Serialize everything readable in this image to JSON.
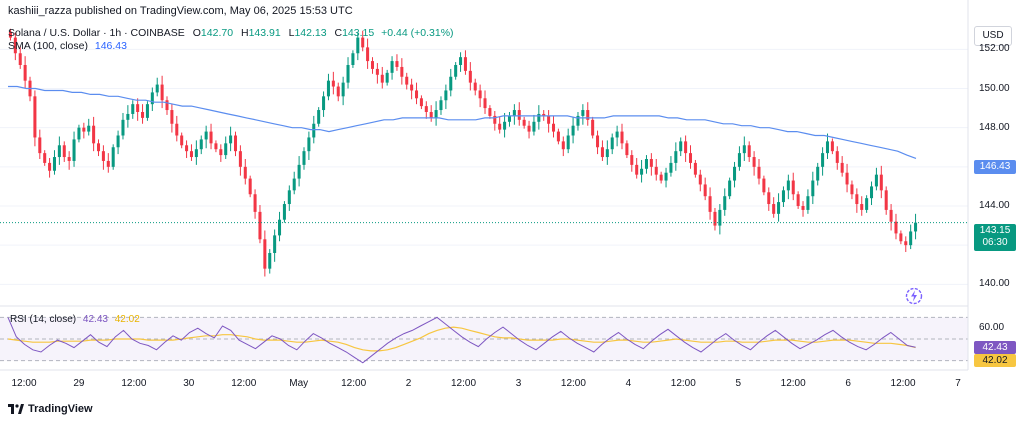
{
  "header": {
    "text": "kashiii_razza published on TradingView.com, May 06, 2025 15:53 UTC"
  },
  "legend": {
    "symbol": "Solana / U.S. Dollar · 1h · COINBASE",
    "open_label": "O",
    "open": "142.70",
    "high_label": "H",
    "high": "143.91",
    "low_label": "L",
    "low": "142.13",
    "close_label": "C",
    "close": "143.15",
    "change": "+0.44 (+0.31%)",
    "sma_label": "SMA (100, close)",
    "sma_value": "146.43",
    "rsi_label": "RSI (14, close)",
    "rsi_value": "42.43",
    "rsi_ma_value": "42.02"
  },
  "currency": "USD",
  "badges": {
    "sma": "146.43",
    "price": "143.15",
    "countdown": "06:30",
    "rsi": "42.43",
    "rsi_ma": "42.02"
  },
  "brand": "TradingView",
  "colors": {
    "up": "#089981",
    "down": "#f23645",
    "sma": "#5b8def",
    "rsi": "#7e57c2",
    "rsi_ma": "#f7c641"
  },
  "chart_data": [
    {
      "type": "candlestick",
      "title": "Solana / U.S. Dollar · 1h · COINBASE",
      "ylim": [
        139.2,
        153.6
      ],
      "y_ticks": [
        "152.00",
        "150.00",
        "148.00",
        "146.00",
        "144.00",
        "142.00",
        "140.00"
      ],
      "x_tick_labels": [
        "12:00",
        "29",
        "12:00",
        "30",
        "12:00",
        "May",
        "12:00",
        "2",
        "12:00",
        "3",
        "12:00",
        "4",
        "12:00",
        "5",
        "12:00",
        "6",
        "12:00",
        "7"
      ],
      "closes": [
        152.6,
        151.8,
        151.2,
        150.4,
        149.6,
        147.5,
        146.7,
        146.2,
        145.8,
        146.5,
        147.1,
        146.5,
        146.3,
        147.4,
        148.0,
        147.8,
        148.1,
        147.2,
        146.8,
        146.3,
        146.0,
        147.0,
        147.6,
        148.4,
        148.7,
        149.2,
        148.8,
        148.5,
        149.2,
        149.8,
        150.2,
        149.4,
        148.9,
        148.2,
        147.6,
        147.1,
        146.8,
        146.5,
        146.9,
        147.4,
        147.8,
        147.2,
        146.9,
        146.6,
        147.2,
        147.6,
        146.8,
        146.0,
        145.4,
        144.6,
        143.7,
        142.3,
        140.8,
        141.6,
        142.5,
        143.3,
        144.1,
        144.8,
        145.4,
        146.1,
        146.8,
        147.5,
        148.2,
        148.9,
        149.6,
        150.4,
        150.1,
        149.6,
        150.3,
        151.2,
        151.8,
        152.6,
        152.1,
        151.4,
        151.0,
        150.7,
        150.3,
        150.8,
        151.4,
        151.1,
        150.6,
        150.2,
        149.9,
        149.5,
        149.1,
        148.8,
        148.5,
        148.9,
        149.4,
        149.9,
        150.6,
        151.2,
        151.6,
        150.9,
        150.3,
        149.9,
        149.5,
        149.0,
        148.6,
        148.2,
        147.9,
        148.3,
        148.6,
        148.9,
        148.4,
        148.1,
        147.8,
        148.3,
        148.7,
        148.6,
        148.2,
        147.8,
        147.3,
        146.9,
        147.6,
        148.1,
        148.6,
        148.9,
        148.4,
        147.6,
        147.0,
        146.5,
        146.9,
        147.5,
        147.8,
        147.2,
        146.6,
        146.1,
        145.6,
        145.9,
        146.4,
        146.0,
        145.6,
        145.3,
        145.7,
        146.2,
        146.8,
        147.3,
        146.7,
        146.2,
        145.6,
        145.1,
        144.5,
        143.7,
        143.0,
        143.8,
        144.5,
        145.3,
        146.0,
        146.7,
        147.1,
        146.5,
        146.0,
        145.4,
        144.7,
        144.1,
        143.6,
        144.2,
        144.8,
        145.3,
        144.6,
        144.0,
        143.8,
        144.5,
        145.3,
        146.0,
        146.7,
        147.3,
        146.8,
        146.2,
        145.7,
        145.1,
        144.6,
        144.1,
        143.8,
        144.4,
        145.0,
        145.6,
        144.8,
        143.8,
        143.2,
        142.6,
        142.2,
        142.0,
        142.7,
        143.15
      ],
      "sma_100": [
        150.1,
        150.1,
        150.0,
        150.0,
        149.9,
        149.9,
        149.9,
        149.8,
        149.8,
        149.7,
        149.7,
        149.6,
        149.6,
        149.5,
        149.4,
        149.4,
        149.3,
        149.3,
        149.2,
        149.1,
        149.1,
        149.0,
        148.9,
        148.8,
        148.7,
        148.6,
        148.5,
        148.4,
        148.3,
        148.2,
        148.1,
        148.0,
        148.0,
        147.9,
        147.9,
        147.8,
        147.9,
        148.0,
        148.1,
        148.2,
        148.3,
        148.4,
        148.4,
        148.5,
        148.5,
        148.5,
        148.5,
        148.5,
        148.4,
        148.4,
        148.4,
        148.4,
        148.5,
        148.5,
        148.6,
        148.6,
        148.6,
        148.6,
        148.6,
        148.6,
        148.6,
        148.6,
        148.5,
        148.5,
        148.5,
        148.5,
        148.6,
        148.6,
        148.6,
        148.6,
        148.6,
        148.6,
        148.5,
        148.5,
        148.4,
        148.4,
        148.4,
        148.3,
        148.2,
        148.2,
        148.1,
        148.1,
        148.0,
        148.0,
        147.9,
        147.8,
        147.8,
        147.7,
        147.6,
        147.6,
        147.5,
        147.4,
        147.3,
        147.2,
        147.1,
        147.0,
        146.9,
        146.8,
        146.6,
        146.43
      ],
      "rsi": [
        70,
        52,
        45,
        40,
        38,
        44,
        49,
        46,
        42,
        48,
        54,
        47,
        43,
        52,
        58,
        50,
        46,
        44,
        40,
        47,
        53,
        49,
        56,
        60,
        55,
        51,
        62,
        58,
        49,
        45,
        41,
        47,
        53,
        50,
        44,
        40,
        48,
        55,
        51,
        46,
        42,
        38,
        33,
        28,
        34,
        40,
        46,
        51,
        55,
        58,
        62,
        66,
        70,
        64,
        58,
        52,
        47,
        43,
        50,
        56,
        61,
        55,
        49,
        44,
        40,
        46,
        52,
        57,
        51,
        46,
        42,
        38,
        45,
        51,
        56,
        50,
        45,
        41,
        48,
        54,
        59,
        53,
        47,
        42,
        38,
        44,
        50,
        55,
        49,
        44,
        40,
        47,
        53,
        58,
        52,
        46,
        41,
        45,
        49,
        54,
        58,
        52,
        47,
        43,
        40,
        45,
        51,
        56,
        50,
        44,
        42.43
      ],
      "rsi_ma": [
        50,
        49,
        48,
        47,
        47,
        47,
        48,
        48,
        48,
        48,
        49,
        49,
        49,
        50,
        50,
        50,
        50,
        49,
        49,
        49,
        49,
        50,
        51,
        52,
        53,
        53,
        54,
        54,
        53,
        52,
        50,
        49,
        49,
        49,
        48,
        47,
        47,
        48,
        49,
        48,
        47,
        45,
        42,
        40,
        39,
        39,
        40,
        42,
        45,
        48,
        51,
        55,
        58,
        60,
        61,
        60,
        58,
        56,
        54,
        52,
        51,
        51,
        50,
        49,
        49,
        49,
        49,
        50,
        50,
        49,
        48,
        47,
        47,
        48,
        49,
        49,
        48,
        47,
        47,
        48,
        49,
        50,
        49,
        48,
        47,
        47,
        47,
        48,
        48,
        47,
        47,
        47,
        48,
        49,
        49,
        49,
        48,
        47,
        47,
        48,
        49,
        49,
        49,
        48,
        47,
        46,
        46,
        46,
        45,
        44,
        42.02
      ],
      "rsi_ylim": [
        25,
        75
      ],
      "rsi_levels": [
        70,
        50,
        30
      ],
      "rsi_ticks": [
        "60.00"
      ]
    }
  ]
}
